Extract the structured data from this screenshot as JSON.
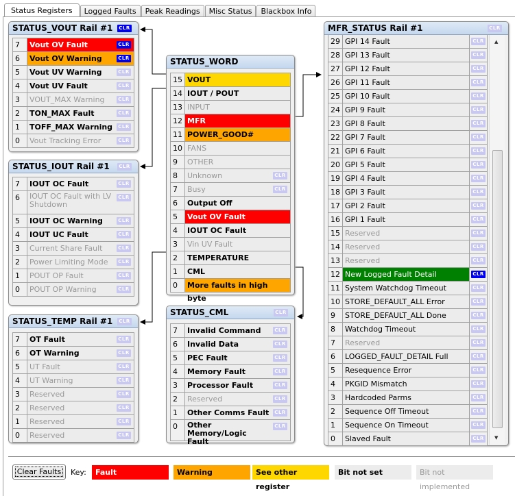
{
  "tabs": [
    "Status Registers",
    "Logged Faults",
    "Peak Readings",
    "Misc Status",
    "Blackbox Info"
  ],
  "active_tab": "Status Registers",
  "clr_label": "CLR",
  "colors": {
    "fault": "#ff0000",
    "warning": "#ffa500",
    "see_other": "#ffd700",
    "bit_not_set": "#ececec",
    "clr_active": "#0000f0",
    "clr_inactive": "#c8c8f0",
    "mfr_active": "#008000"
  },
  "panels": {
    "vout": {
      "title": "STATUS_VOUT Rail #1",
      "header_clr": "active",
      "rows": [
        [
          "7",
          "Vout OV Fault",
          "fault",
          "active"
        ],
        [
          "6",
          "Vout OV Warning",
          "warning",
          "active"
        ],
        [
          "5",
          "Vout UV Warning",
          "bit-not-set",
          "inactive"
        ],
        [
          "4",
          "Vout UV Fault",
          "bit-not-set",
          "inactive"
        ],
        [
          "3",
          "VOUT_MAX Warning",
          "bit-not-implemented",
          "inactive"
        ],
        [
          "2",
          "TON_MAX Fault",
          "bit-not-set",
          "inactive"
        ],
        [
          "1",
          "TOFF_MAX Warning",
          "bit-not-set",
          "inactive"
        ],
        [
          "0",
          "Vout Tracking Error",
          "bit-not-implemented",
          "inactive"
        ]
      ]
    },
    "iout": {
      "title": "STATUS_IOUT Rail #1",
      "header_clr": "inactive",
      "rows": [
        [
          "7",
          "IOUT OC Fault",
          "bit-not-set",
          "inactive"
        ],
        [
          "6",
          "IOUT OC Fault with LV Shutdown",
          "bit-not-implemented",
          "inactive"
        ],
        [
          "5",
          "IOUT OC Warning",
          "bit-not-set",
          "inactive"
        ],
        [
          "4",
          "IOUT UC Fault",
          "bit-not-set",
          "inactive"
        ],
        [
          "3",
          "Current Share Fault",
          "bit-not-implemented",
          "inactive"
        ],
        [
          "2",
          "Power Limiting Mode",
          "bit-not-implemented",
          "inactive"
        ],
        [
          "1",
          "POUT OP Fault",
          "bit-not-implemented",
          "inactive"
        ],
        [
          "0",
          "POUT OP Warning",
          "bit-not-implemented",
          "inactive"
        ]
      ]
    },
    "temp": {
      "title": "STATUS_TEMP Rail #1",
      "header_clr": "inactive",
      "rows": [
        [
          "7",
          "OT Fault",
          "bit-not-set",
          "inactive"
        ],
        [
          "6",
          "OT Warning",
          "bit-not-set",
          "inactive"
        ],
        [
          "5",
          "UT Fault",
          "bit-not-implemented",
          "inactive"
        ],
        [
          "4",
          "UT Warning",
          "bit-not-implemented",
          "inactive"
        ],
        [
          "3",
          "Reserved",
          "bit-not-implemented",
          "inactive"
        ],
        [
          "2",
          "Reserved",
          "bit-not-implemented",
          "inactive"
        ],
        [
          "1",
          "Reserved",
          "bit-not-implemented",
          "inactive"
        ],
        [
          "0",
          "Reserved",
          "bit-not-implemented",
          "inactive"
        ]
      ]
    },
    "word": {
      "title": "STATUS_WORD",
      "rows": [
        [
          "15",
          "VOUT",
          "see-other",
          null
        ],
        [
          "14",
          "IOUT / POUT",
          "bit-not-set",
          null
        ],
        [
          "13",
          "INPUT",
          "bit-not-implemented",
          null
        ],
        [
          "12",
          "MFR",
          "fault",
          null
        ],
        [
          "11",
          "POWER_GOOD#",
          "warning",
          null
        ],
        [
          "10",
          "FANS",
          "bit-not-implemented",
          null
        ],
        [
          "9",
          "OTHER",
          "bit-not-implemented",
          null
        ],
        [
          "8",
          "Unknown",
          "bit-not-implemented",
          "inactive"
        ],
        [
          "7",
          "Busy",
          "bit-not-implemented",
          "inactive"
        ],
        [
          "6",
          "Output Off",
          "bit-not-set",
          null
        ],
        [
          "5",
          "Vout OV Fault",
          "fault",
          null
        ],
        [
          "4",
          "IOUT OC Fault",
          "bit-not-set",
          null
        ],
        [
          "3",
          "Vin UV Fault",
          "bit-not-implemented",
          null
        ],
        [
          "2",
          "TEMPERATURE",
          "bit-not-set",
          null
        ],
        [
          "1",
          "CML",
          "bit-not-set",
          null
        ],
        [
          "0",
          "More faults in high byte",
          "warning",
          null
        ]
      ]
    },
    "cml": {
      "title": "STATUS_CML",
      "header_clr": "inactive",
      "rows": [
        [
          "7",
          "Invalid Command",
          "bit-not-set",
          "inactive"
        ],
        [
          "6",
          "Invalid Data",
          "bit-not-set",
          "inactive"
        ],
        [
          "5",
          "PEC Fault",
          "bit-not-set",
          "inactive"
        ],
        [
          "4",
          "Memory Fault",
          "bit-not-set",
          "inactive"
        ],
        [
          "3",
          "Processor Fault",
          "bit-not-set",
          "inactive"
        ],
        [
          "2",
          "Reserved",
          "bit-not-implemented",
          "inactive"
        ],
        [
          "1",
          "Other Comms Fault",
          "bit-not-set",
          "inactive"
        ],
        [
          "0",
          "Other Memory/Logic Fault",
          "bit-not-set",
          "inactive"
        ]
      ]
    },
    "mfr": {
      "title": "MFR_STATUS Rail #1",
      "header_clr": "inactive",
      "rows": [
        [
          "29",
          "GPI 14 Fault",
          "normal",
          "inactive"
        ],
        [
          "28",
          "GPI 13 Fault",
          "normal",
          "inactive"
        ],
        [
          "27",
          "GPI 12 Fault",
          "normal",
          "inactive"
        ],
        [
          "26",
          "GPI 11 Fault",
          "normal",
          "inactive"
        ],
        [
          "25",
          "GPI 10 Fault",
          "normal",
          "inactive"
        ],
        [
          "24",
          "GPI 9 Fault",
          "normal",
          "inactive"
        ],
        [
          "23",
          "GPI 8 Fault",
          "normal",
          "inactive"
        ],
        [
          "22",
          "GPI 7 Fault",
          "normal",
          "inactive"
        ],
        [
          "21",
          "GPI 6 Fault",
          "normal",
          "inactive"
        ],
        [
          "20",
          "GPI 5 Fault",
          "normal",
          "inactive"
        ],
        [
          "19",
          "GPI 4 Fault",
          "normal",
          "inactive"
        ],
        [
          "18",
          "GPI 3 Fault",
          "normal",
          "inactive"
        ],
        [
          "17",
          "GPI 2 Fault",
          "normal",
          "inactive"
        ],
        [
          "16",
          "GPI 1 Fault",
          "normal",
          "inactive"
        ],
        [
          "15",
          "Reserved",
          "bit-not-implemented",
          "inactive"
        ],
        [
          "14",
          "Reserved",
          "bit-not-implemented",
          "inactive"
        ],
        [
          "13",
          "Reserved",
          "bit-not-implemented",
          "inactive"
        ],
        [
          "12",
          "New Logged Fault Detail",
          "green",
          "active"
        ],
        [
          "11",
          "System Watchdog Timeout",
          "normal",
          "inactive"
        ],
        [
          "10",
          "STORE_DEFAULT_ALL Error",
          "normal",
          "inactive"
        ],
        [
          "9",
          "STORE_DEFAULT_ALL Done",
          "normal",
          "inactive"
        ],
        [
          "8",
          "Watchdog Timeout",
          "normal",
          "inactive"
        ],
        [
          "7",
          "Reserved",
          "bit-not-implemented",
          "inactive"
        ],
        [
          "6",
          "LOGGED_FAULT_DETAIL Full",
          "normal",
          "inactive"
        ],
        [
          "5",
          "Resequence Error",
          "normal",
          "inactive"
        ],
        [
          "4",
          "PKGID Mismatch",
          "normal",
          "inactive"
        ],
        [
          "3",
          "Hardcoded Parms",
          "normal",
          "inactive"
        ],
        [
          "2",
          "Sequence Off Timeout",
          "normal",
          "inactive"
        ],
        [
          "1",
          "Sequence On Timeout",
          "normal",
          "inactive"
        ],
        [
          "0",
          "Slaved Fault",
          "normal",
          "inactive"
        ]
      ]
    }
  },
  "footer": {
    "clear_faults": "Clear Faults",
    "key_label": "Key:",
    "key": [
      {
        "label": "Fault",
        "state": "fault"
      },
      {
        "label": "Warning",
        "state": "warning"
      },
      {
        "label": "See other register",
        "state": "see-other"
      },
      {
        "label": "Bit not set",
        "state": "bit-not-set"
      },
      {
        "label": "Bit not implemented",
        "state": "bit-not-implemented"
      }
    ]
  }
}
